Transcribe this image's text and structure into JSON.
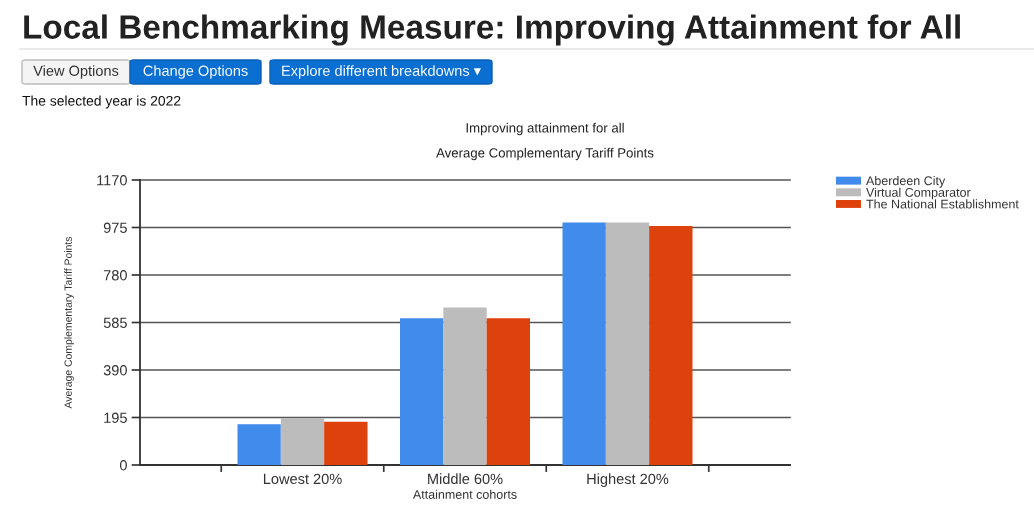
{
  "chart_data": {
    "type": "bar",
    "title": "Improving attainment for all",
    "subtitle": "Average Complementary Tariff Points",
    "xlabel": "Attainment cohorts",
    "ylabel": "Average Complementary Tariff Points",
    "categories": [
      "Lowest 20%",
      "Middle 60%",
      "Highest 20%"
    ],
    "series": [
      {
        "name": "Aberdeen City",
        "color": "#418bec",
        "values": [
          167,
          602,
          996
        ]
      },
      {
        "name": "Virtual Comparator",
        "color": "#bcbcbc",
        "values": [
          192,
          647,
          996
        ]
      },
      {
        "name": "The National Establishment",
        "color": "#dd420c",
        "values": [
          178,
          602,
          981
        ]
      }
    ],
    "ylim": [
      0,
      1170
    ],
    "yticks": [
      0,
      195,
      390,
      585,
      780,
      975,
      1170
    ],
    "grid": "y",
    "legend": "top right",
    "annotations": [
      "Local Benchmarking Measure: Improving Attainment for All",
      "View Options",
      "Change Options",
      "Explore different breakdowns ▾",
      "The selected year is 2022"
    ]
  }
}
